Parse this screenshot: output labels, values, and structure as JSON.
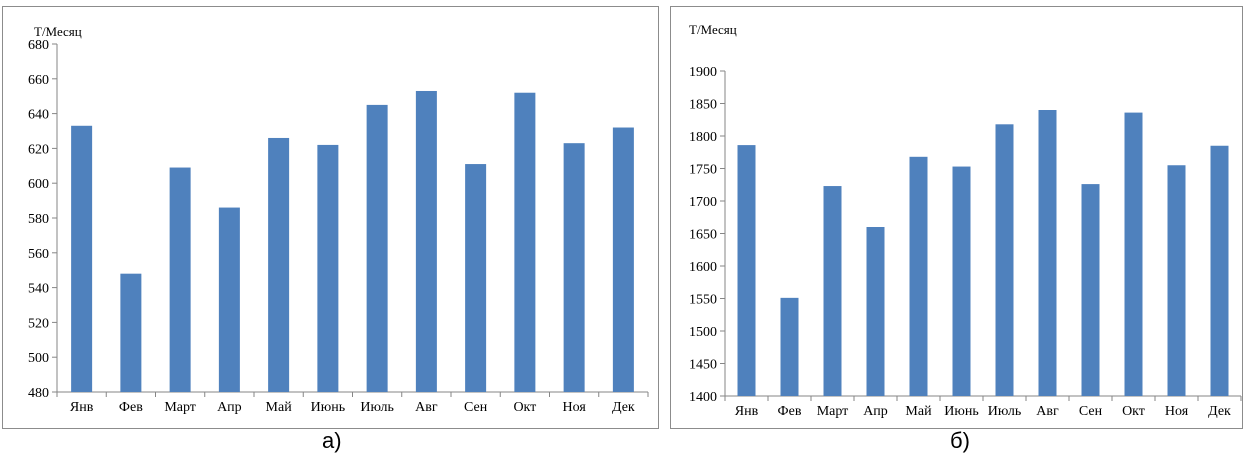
{
  "captions": {
    "left": "а)",
    "right": "б)"
  },
  "chart_data": [
    {
      "type": "bar",
      "ylabel": "Т/Месяц",
      "categories": [
        "Янв",
        "Фев",
        "Март",
        "Апр",
        "Май",
        "Июнь",
        "Июль",
        "Авг",
        "Сен",
        "Окт",
        "Ноя",
        "Дек"
      ],
      "values": [
        633,
        548,
        609,
        586,
        626,
        622,
        645,
        653,
        611,
        652,
        623,
        632
      ],
      "ylim": [
        480,
        680
      ],
      "yticks": [
        480,
        500,
        520,
        540,
        560,
        580,
        600,
        620,
        640,
        660,
        680
      ],
      "grid": false,
      "color": "#4f81bd"
    },
    {
      "type": "bar",
      "ylabel": "Т/Месяц",
      "categories": [
        "Янв",
        "Фев",
        "Март",
        "Апр",
        "Май",
        "Июнь",
        "Июль",
        "Авг",
        "Сен",
        "Окт",
        "Ноя",
        "Дек"
      ],
      "values": [
        1786,
        1551,
        1723,
        1660,
        1768,
        1753,
        1818,
        1840,
        1726,
        1836,
        1755,
        1785
      ],
      "ylim": [
        1400,
        1900
      ],
      "yticks": [
        1400,
        1450,
        1500,
        1550,
        1600,
        1650,
        1700,
        1750,
        1800,
        1850,
        1900
      ],
      "grid": false,
      "color": "#4f81bd"
    }
  ]
}
